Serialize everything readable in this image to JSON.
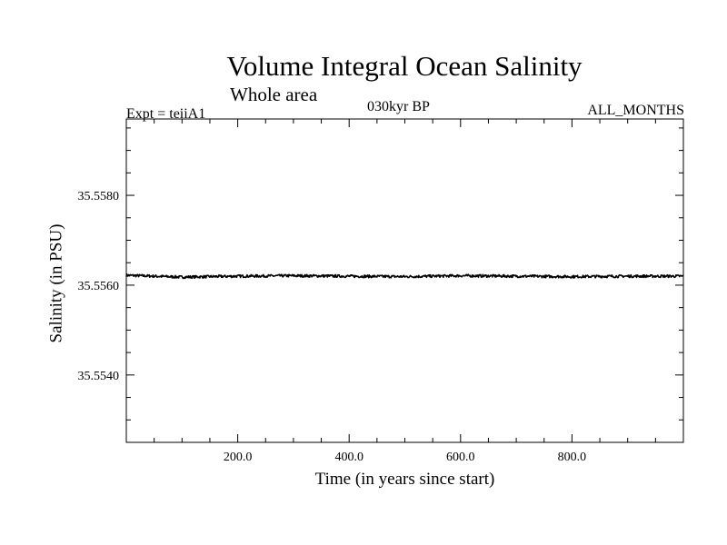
{
  "chart_data": {
    "type": "line",
    "title": "Volume Integral Ocean Salinity",
    "subtitle": "Whole area",
    "annotations": {
      "experiment": "Expt = teiiA1",
      "period": "030kyr BP",
      "months": "ALL_MONTHS"
    },
    "xlabel": "Time (in years since start)",
    "ylabel": "Salinity (in PSU)",
    "xlim": [
      0,
      1000
    ],
    "ylim": [
      35.5525,
      35.5597
    ],
    "x_ticks": [
      {
        "value": 200,
        "label": "200.0"
      },
      {
        "value": 400,
        "label": "400.0"
      },
      {
        "value": 600,
        "label": "600.0"
      },
      {
        "value": 800,
        "label": "800.0"
      }
    ],
    "y_ticks": [
      {
        "value": 35.554,
        "label": "35.5540"
      },
      {
        "value": 35.556,
        "label": "35.5560"
      },
      {
        "value": 35.558,
        "label": "35.5580"
      }
    ],
    "grid": false,
    "series": [
      {
        "color": "#000000",
        "x": [
          0,
          100,
          200,
          300,
          400,
          500,
          600,
          700,
          800,
          900,
          1000
        ],
        "values": [
          35.55622,
          35.55618,
          35.5562,
          35.55621,
          35.5562,
          35.55619,
          35.55621,
          35.5562,
          35.55619,
          35.5562,
          35.5562
        ]
      }
    ]
  }
}
